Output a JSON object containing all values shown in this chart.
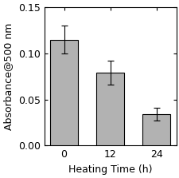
{
  "categories": [
    "0",
    "12",
    "24"
  ],
  "values": [
    0.115,
    0.079,
    0.034
  ],
  "errors": [
    0.015,
    0.013,
    0.007
  ],
  "bar_color": "#b2b2b2",
  "bar_edgecolor": "#000000",
  "error_color": "#000000",
  "title": "",
  "xlabel": "Heating Time (h)",
  "ylabel": "Absorbance@500 nm",
  "ylim": [
    0.0,
    0.15
  ],
  "yticks": [
    0.0,
    0.05,
    0.1,
    0.15
  ],
  "bar_width": 0.6,
  "capsize": 3,
  "background_color": "#ffffff",
  "label_fontsize": 9,
  "tick_fontsize": 9
}
